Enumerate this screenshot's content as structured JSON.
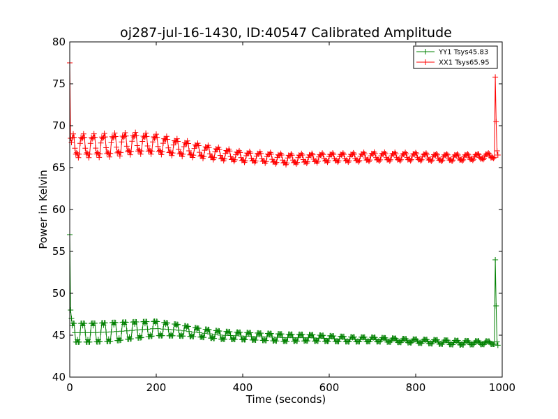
{
  "chart_data": {
    "type": "line",
    "title": "oj287-jul-16-1430, ID:40547 Calibrated Amplitude",
    "xlabel": "Time (seconds)",
    "ylabel": "Power in Kelvin",
    "xlim": [
      0,
      1000
    ],
    "ylim": [
      40,
      80
    ],
    "xticks": [
      0,
      200,
      400,
      600,
      800,
      1000
    ],
    "yticks": [
      40,
      45,
      50,
      55,
      60,
      65,
      70,
      75,
      80
    ],
    "xtick_labels": [
      "0",
      "200",
      "400",
      "600",
      "800",
      "1000"
    ],
    "ytick_labels": [
      "40",
      "45",
      "50",
      "55",
      "60",
      "65",
      "70",
      "75",
      "80"
    ],
    "grid": false,
    "legend_position": "top-right",
    "marker": "+",
    "series": [
      {
        "name": "YY1 Tsys45.83",
        "color": "#008000",
        "sampling": {
          "x_start": 0,
          "x_end": 990,
          "step": 2
        },
        "baseline": {
          "x": [
            0,
            50,
            100,
            150,
            200,
            250,
            300,
            350,
            400,
            450,
            500,
            550,
            600,
            650,
            700,
            750,
            800,
            850,
            900,
            950,
            990
          ],
          "y": [
            45.3,
            45.3,
            45.4,
            45.6,
            45.8,
            45.6,
            45.3,
            45.0,
            44.9,
            44.8,
            44.7,
            44.7,
            44.6,
            44.5,
            44.5,
            44.4,
            44.3,
            44.2,
            44.1,
            44.1,
            44.1
          ]
        },
        "ripple": {
          "period": 24,
          "amplitude": [
            1.3,
            1.3,
            1.0,
            0.6,
            0.5,
            0.5,
            0.4,
            0.3,
            0.25,
            0.3,
            0.2
          ]
        },
        "spikes": [
          {
            "x": 0,
            "y": 57.0
          },
          {
            "x": 2,
            "y": 48.0
          },
          {
            "x": 4,
            "y": 47.0
          },
          {
            "x": 984,
            "y": 54.0
          },
          {
            "x": 986,
            "y": 48.5
          },
          {
            "x": 988,
            "y": 44.2
          },
          {
            "x": 990,
            "y": 43.8
          }
        ]
      },
      {
        "name": "XX1 Tsys65.95",
        "color": "#ff0000",
        "sampling": {
          "x_start": 0,
          "x_end": 990,
          "step": 2
        },
        "baseline": {
          "x": [
            0,
            50,
            100,
            150,
            200,
            250,
            300,
            350,
            400,
            450,
            500,
            550,
            600,
            650,
            700,
            750,
            800,
            850,
            900,
            950,
            990
          ],
          "y": [
            67.6,
            67.6,
            67.7,
            67.9,
            67.8,
            67.4,
            67.0,
            66.6,
            66.3,
            66.2,
            66.0,
            66.1,
            66.2,
            66.2,
            66.3,
            66.3,
            66.3,
            66.2,
            66.2,
            66.3,
            66.5
          ]
        },
        "ripple": {
          "period": 24,
          "amplitude": [
            1.3,
            1.3,
            1.1,
            0.8,
            0.6,
            0.6,
            0.5,
            0.5,
            0.45,
            0.4,
            0.3
          ]
        },
        "spikes": [
          {
            "x": 0,
            "y": 77.5
          },
          {
            "x": 2,
            "y": 68.5
          },
          {
            "x": 4,
            "y": 68.0
          },
          {
            "x": 984,
            "y": 75.8
          },
          {
            "x": 986,
            "y": 70.5
          },
          {
            "x": 988,
            "y": 67.0
          },
          {
            "x": 990,
            "y": 66.5
          }
        ]
      }
    ]
  }
}
